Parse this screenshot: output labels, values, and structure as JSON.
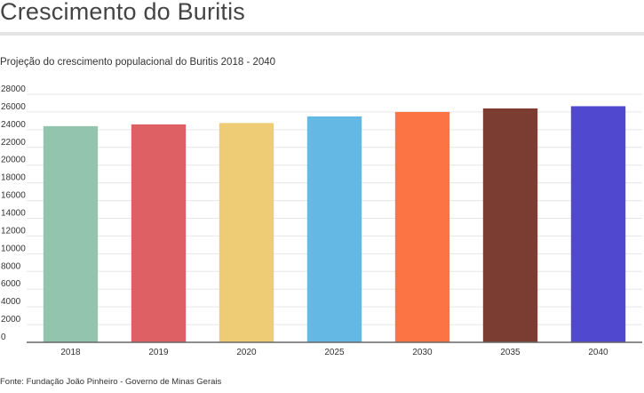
{
  "header": {
    "title": "Crescimento do Buritis",
    "subtitle": "Projeção do crescimento populacional do Buritis 2018 - 2040"
  },
  "footer": {
    "source": "Fonte: Fundação João Pinheiro - Governo de Minas Gerais"
  },
  "chart_data": {
    "type": "bar",
    "title": "",
    "xlabel": "",
    "ylabel": "",
    "categories": [
      "2018",
      "2019",
      "2020",
      "2025",
      "2030",
      "2035",
      "2040"
    ],
    "values": [
      24400,
      24600,
      24750,
      25500,
      26000,
      26400,
      26650
    ],
    "colors": [
      "#93c4ad",
      "#df6064",
      "#eecc76",
      "#64b8e4",
      "#fc7444",
      "#7b3d32",
      "#5049d0"
    ],
    "ylim": [
      0,
      28000
    ],
    "yticks": [
      0,
      2000,
      4000,
      6000,
      8000,
      10000,
      12000,
      14000,
      16000,
      18000,
      20000,
      22000,
      24000,
      26000,
      28000
    ],
    "grid": true,
    "legend": "none"
  }
}
